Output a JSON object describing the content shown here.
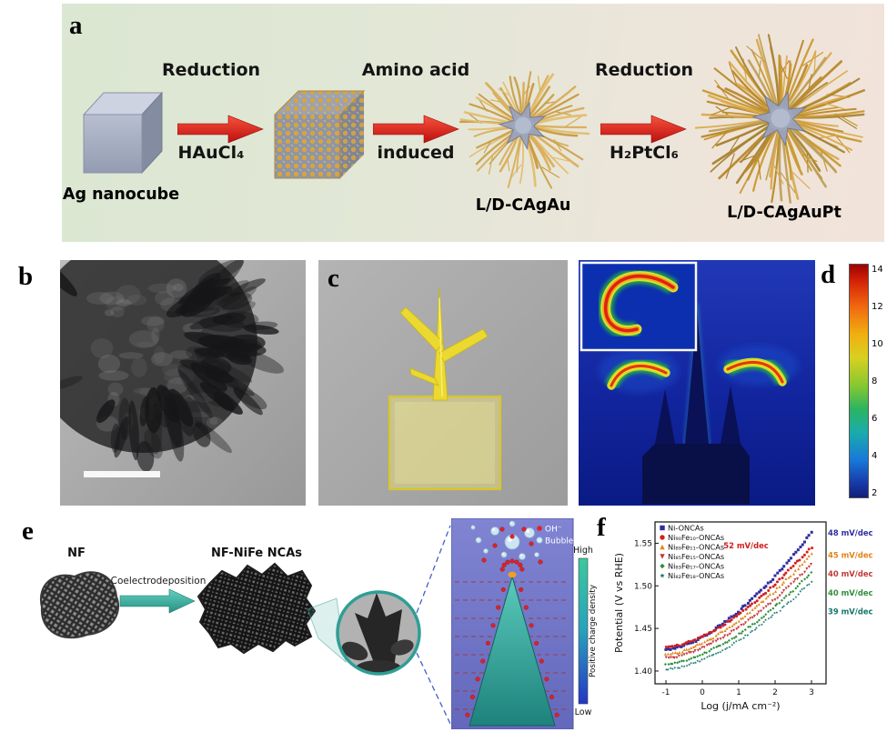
{
  "panel_a": {
    "tag": "a",
    "start_label": "Ag nanocube",
    "step1": {
      "top": "Reduction",
      "bottom": "HAuCl₄"
    },
    "step2": {
      "top": "Amino acid",
      "bottom": "induced"
    },
    "mid_label": "L/D-CAgAu",
    "step3": {
      "top": "Reduction",
      "bottom": "H₂PtCl₆"
    },
    "end_label": "L/D-CAgAuPt"
  },
  "panel_b": {
    "tag": "b"
  },
  "panel_c": {
    "tag": "c"
  },
  "panel_d": {
    "tag": "d",
    "colorbar_ticks": [
      "14",
      "12",
      "10",
      "8",
      "6",
      "4",
      "2"
    ]
  },
  "panel_e": {
    "tag": "e",
    "substrate_label": "NF",
    "process_label": "Coelectrodeposition",
    "product_label": "NF-NiFe NCAs",
    "legend": {
      "oh": "OH⁻",
      "bubble": "Bubble"
    },
    "colorbar": {
      "title": "Positive charge density",
      "high": "High",
      "low": "Low"
    }
  },
  "panel_f": {
    "tag": "f"
  },
  "chart_data": {
    "type": "scatter",
    "xlabel": "Log (j/mA cm⁻²)",
    "ylabel": "Potential (V vs RHE)",
    "xlim": [
      -1.3,
      3.4
    ],
    "ylim": [
      1.385,
      1.575
    ],
    "xticks": [
      -1,
      0,
      1,
      2,
      3
    ],
    "yticks": [
      1.4,
      1.45,
      1.5,
      1.55
    ],
    "legend_position": "top-left",
    "x": [
      -1,
      -0.75,
      -0.5,
      -0.25,
      0,
      0.25,
      0.5,
      0.75,
      1,
      1.25,
      1.5,
      1.75,
      2,
      2.25,
      2.5,
      2.75,
      3
    ],
    "series": [
      {
        "name": "Ni-ONCAs",
        "color": "#2e2e9e",
        "marker": "square",
        "y": [
          1.425,
          1.427,
          1.43,
          1.434,
          1.44,
          1.446,
          1.454,
          1.461,
          1.47,
          1.48,
          1.49,
          1.5,
          1.511,
          1.523,
          1.536,
          1.549,
          1.562
        ]
      },
      {
        "name": "Ni₉₀Fe₁₀-ONCAs",
        "color": "#d02020",
        "marker": "circle",
        "y": [
          1.428,
          1.429,
          1.432,
          1.436,
          1.441,
          1.446,
          1.452,
          1.459,
          1.467,
          1.475,
          1.483,
          1.492,
          1.502,
          1.512,
          1.523,
          1.534,
          1.545
        ]
      },
      {
        "name": "Ni₈₉Fe₁₁-ONCAs",
        "color": "#e08418",
        "marker": "triangle",
        "y": [
          1.42,
          1.421,
          1.424,
          1.428,
          1.433,
          1.438,
          1.445,
          1.451,
          1.459,
          1.467,
          1.476,
          1.485,
          1.494,
          1.505,
          1.515,
          1.526,
          1.538
        ]
      },
      {
        "name": "Ni₈₅Fe₁₅-ONCAs",
        "color": "#c03838",
        "marker": "triangle-down",
        "y": [
          1.415,
          1.416,
          1.419,
          1.423,
          1.427,
          1.432,
          1.438,
          1.444,
          1.451,
          1.459,
          1.467,
          1.475,
          1.484,
          1.494,
          1.504,
          1.514,
          1.525
        ]
      },
      {
        "name": "Ni₈₃Fe₁₇-ONCAs",
        "color": "#2f8f3a",
        "marker": "diamond",
        "y": [
          1.408,
          1.409,
          1.412,
          1.415,
          1.42,
          1.425,
          1.43,
          1.436,
          1.443,
          1.451,
          1.458,
          1.467,
          1.476,
          1.485,
          1.494,
          1.505,
          1.515
        ]
      },
      {
        "name": "Ni₈₂Fe₁₈-ONCAs",
        "color": "#17756b",
        "marker": "star",
        "y": [
          1.402,
          1.403,
          1.406,
          1.409,
          1.413,
          1.418,
          1.423,
          1.429,
          1.436,
          1.443,
          1.451,
          1.459,
          1.467,
          1.476,
          1.485,
          1.495,
          1.505
        ]
      }
    ],
    "annotations": [
      {
        "text": "52 mV/dec",
        "color": "#d02020",
        "x": 1.2,
        "y": 1.547
      },
      {
        "text": "48 mV/dec",
        "color": "#2e2e9e",
        "x": 3.5,
        "y": 1.562
      },
      {
        "text": "45 mV/dec",
        "color": "#e08418",
        "x": 3.5,
        "y": 1.536
      },
      {
        "text": "40 mV/dec",
        "color": "#c03838",
        "x": 3.5,
        "y": 1.514
      },
      {
        "text": "40 mV/dec",
        "color": "#2f8f3a",
        "x": 3.5,
        "y": 1.492
      },
      {
        "text": "39 mV/dec",
        "color": "#17756b",
        "x": 3.5,
        "y": 1.47
      }
    ]
  }
}
